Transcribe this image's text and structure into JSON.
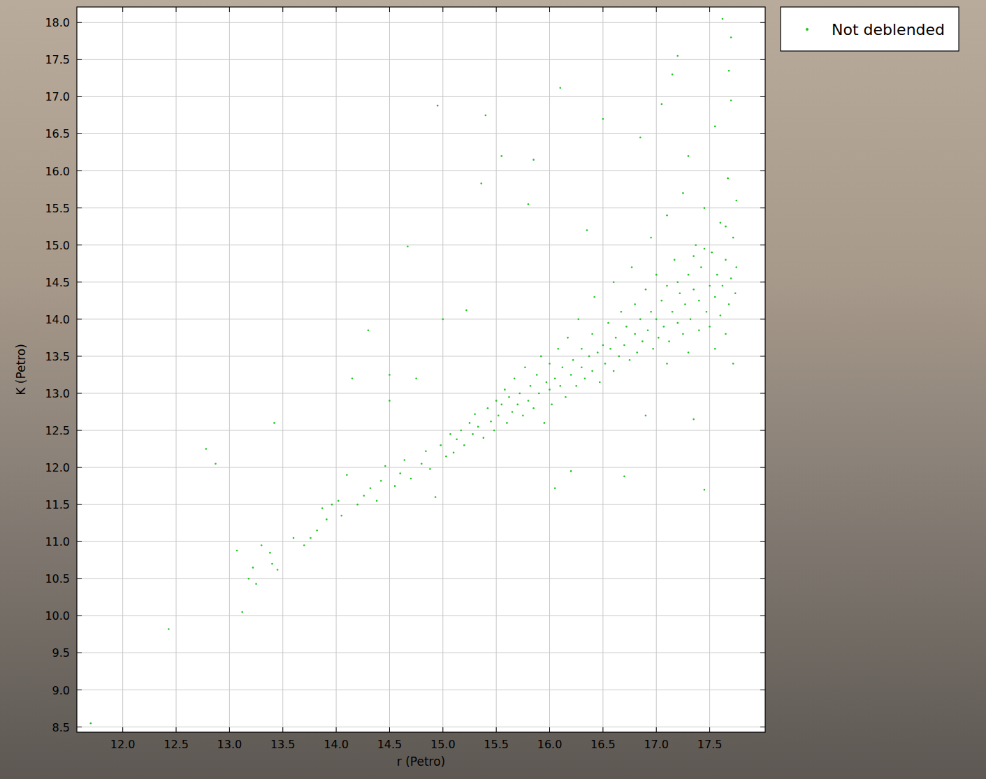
{
  "chart_data": {
    "type": "scatter",
    "x_label": "r (Petro)",
    "y_label": "K (Petro)",
    "xlim": [
      11.57,
      18.02
    ],
    "ylim": [
      8.43,
      18.21
    ],
    "xticks": [
      {
        "value": 12,
        "label": "12.0"
      },
      {
        "value": 12.5,
        "label": "12.5"
      },
      {
        "value": 13,
        "label": "13.0"
      },
      {
        "value": 13.5,
        "label": "13.5"
      },
      {
        "value": 14,
        "label": "14.0"
      },
      {
        "value": 14.5,
        "label": "14.5"
      },
      {
        "value": 15,
        "label": "15.0"
      },
      {
        "value": 15.5,
        "label": "15.5"
      },
      {
        "value": 16,
        "label": "16.0"
      },
      {
        "value": 16.5,
        "label": "16.5"
      },
      {
        "value": 17,
        "label": "17.0"
      },
      {
        "value": 17.5,
        "label": "17.5"
      }
    ],
    "yticks": [
      {
        "value": 8.5,
        "label": "8.5"
      },
      {
        "value": 9,
        "label": "9.0"
      },
      {
        "value": 9.5,
        "label": "9.5"
      },
      {
        "value": 10,
        "label": "10.0"
      },
      {
        "value": 10.5,
        "label": "10.5"
      },
      {
        "value": 11,
        "label": "11.0"
      },
      {
        "value": 11.5,
        "label": "11.5"
      },
      {
        "value": 12,
        "label": "12.0"
      },
      {
        "value": 12.5,
        "label": "12.5"
      },
      {
        "value": 13,
        "label": "13.0"
      },
      {
        "value": 13.5,
        "label": "13.5"
      },
      {
        "value": 14,
        "label": "14.0"
      },
      {
        "value": 14.5,
        "label": "14.5"
      },
      {
        "value": 15,
        "label": "15.0"
      },
      {
        "value": 15.5,
        "label": "15.5"
      },
      {
        "value": 16,
        "label": "16.0"
      },
      {
        "value": 16.5,
        "label": "16.5"
      },
      {
        "value": 17,
        "label": "17.0"
      },
      {
        "value": 17.5,
        "label": "17.5"
      },
      {
        "value": 18,
        "label": "18.0"
      }
    ],
    "grid": true,
    "legend": "top-right",
    "series": [
      {
        "name": "Not deblended",
        "color": "#1fc41f",
        "marker": "point",
        "x": [
          11.7,
          12.43,
          12.78,
          12.87,
          13.07,
          13.12,
          13.18,
          13.22,
          13.25,
          13.3,
          13.38,
          13.4,
          13.42,
          13.45,
          13.6,
          13.7,
          13.76,
          13.82,
          13.87,
          13.91,
          13.96,
          14.02,
          14.05,
          14.1,
          14.15,
          14.2,
          14.26,
          14.3,
          14.32,
          14.38,
          14.42,
          14.46,
          14.5,
          14.5,
          14.55,
          14.6,
          14.64,
          14.67,
          14.7,
          14.75,
          14.8,
          14.84,
          14.88,
          14.93,
          14.95,
          14.98,
          15.0,
          15.03,
          15.07,
          15.1,
          15.13,
          15.17,
          15.2,
          15.22,
          15.25,
          15.28,
          15.3,
          15.33,
          15.36,
          15.38,
          15.4,
          15.42,
          15.45,
          15.48,
          15.5,
          15.52,
          15.55,
          15.55,
          15.58,
          15.6,
          15.62,
          15.65,
          15.67,
          15.7,
          15.72,
          15.75,
          15.77,
          15.8,
          15.8,
          15.82,
          15.85,
          15.85,
          15.88,
          15.9,
          15.92,
          15.95,
          15.97,
          16.0,
          16.0,
          16.02,
          16.05,
          16.05,
          16.08,
          16.1,
          16.1,
          16.12,
          16.15,
          16.17,
          16.2,
          16.2,
          16.22,
          16.25,
          16.27,
          16.3,
          16.3,
          16.33,
          16.35,
          16.37,
          16.4,
          16.4,
          16.42,
          16.45,
          16.47,
          16.5,
          16.5,
          16.52,
          16.55,
          16.57,
          16.6,
          16.6,
          16.62,
          16.65,
          16.67,
          16.7,
          16.7,
          16.72,
          16.75,
          16.77,
          16.8,
          16.8,
          16.82,
          16.85,
          16.85,
          16.87,
          16.9,
          16.9,
          16.92,
          16.95,
          16.95,
          16.97,
          17.0,
          17.0,
          17.02,
          17.05,
          17.05,
          17.07,
          17.1,
          17.1,
          17.12,
          17.15,
          17.15,
          17.17,
          17.2,
          17.2,
          17.22,
          17.25,
          17.25,
          17.27,
          17.3,
          17.3,
          17.32,
          17.35,
          17.35,
          17.37,
          17.4,
          17.4,
          17.42,
          17.45,
          17.45,
          17.47,
          17.5,
          17.5,
          17.52,
          17.55,
          17.55,
          17.57,
          17.6,
          17.6,
          17.62,
          17.62,
          17.65,
          17.65,
          17.67,
          17.68,
          17.7,
          17.7,
          17.7,
          17.72,
          17.72,
          17.74,
          17.75,
          17.75,
          17.1,
          17.3,
          17.55,
          17.45,
          17.65,
          17.35,
          17.68,
          17.2
        ],
        "values": [
          8.55,
          9.82,
          12.25,
          12.05,
          10.88,
          10.05,
          10.5,
          10.65,
          10.43,
          10.95,
          10.85,
          10.7,
          12.6,
          10.62,
          11.05,
          10.95,
          11.05,
          11.15,
          11.45,
          11.3,
          11.5,
          11.55,
          11.35,
          11.9,
          13.2,
          11.5,
          11.62,
          13.85,
          11.72,
          11.55,
          11.82,
          12.02,
          13.25,
          12.9,
          11.75,
          11.92,
          12.1,
          14.98,
          11.85,
          13.2,
          12.05,
          12.22,
          11.98,
          11.6,
          16.88,
          12.3,
          14.0,
          12.15,
          12.45,
          12.2,
          12.38,
          12.5,
          12.3,
          14.12,
          12.6,
          12.45,
          12.72,
          12.55,
          15.83,
          12.4,
          16.75,
          12.8,
          12.62,
          12.5,
          12.9,
          12.7,
          16.2,
          12.85,
          13.05,
          12.6,
          12.95,
          12.75,
          13.2,
          12.85,
          13.0,
          12.7,
          13.35,
          12.9,
          15.55,
          13.1,
          16.15,
          12.8,
          13.25,
          13.0,
          13.5,
          12.6,
          13.15,
          13.05,
          13.4,
          12.85,
          13.2,
          11.72,
          13.6,
          17.12,
          13.1,
          13.35,
          12.95,
          13.75,
          13.25,
          11.95,
          13.45,
          13.1,
          14.0,
          13.35,
          13.6,
          13.2,
          15.2,
          13.5,
          13.3,
          13.8,
          14.3,
          13.55,
          13.15,
          13.65,
          16.7,
          13.4,
          13.95,
          13.6,
          13.3,
          14.5,
          13.75,
          13.5,
          14.1,
          13.65,
          11.88,
          13.9,
          13.45,
          14.7,
          13.8,
          14.2,
          13.55,
          16.45,
          14.0,
          13.7,
          14.4,
          12.7,
          13.85,
          14.1,
          15.1,
          13.6,
          14.0,
          14.6,
          13.75,
          14.25,
          16.9,
          13.9,
          14.45,
          15.4,
          13.7,
          14.1,
          17.3,
          14.8,
          13.95,
          17.55,
          14.35,
          13.8,
          15.7,
          14.2,
          14.6,
          16.2,
          14.0,
          12.65,
          14.4,
          15.0,
          13.85,
          14.25,
          14.7,
          11.7,
          15.5,
          14.1,
          14.45,
          13.9,
          14.9,
          14.3,
          16.6,
          14.6,
          14.05,
          15.3,
          18.05,
          14.45,
          13.8,
          14.8,
          15.9,
          14.2,
          14.55,
          17.8,
          16.95,
          15.1,
          13.4,
          14.35,
          14.7,
          15.6,
          13.4,
          13.55,
          13.6,
          14.95,
          15.25,
          14.85,
          17.35,
          14.5
        ]
      }
    ]
  }
}
